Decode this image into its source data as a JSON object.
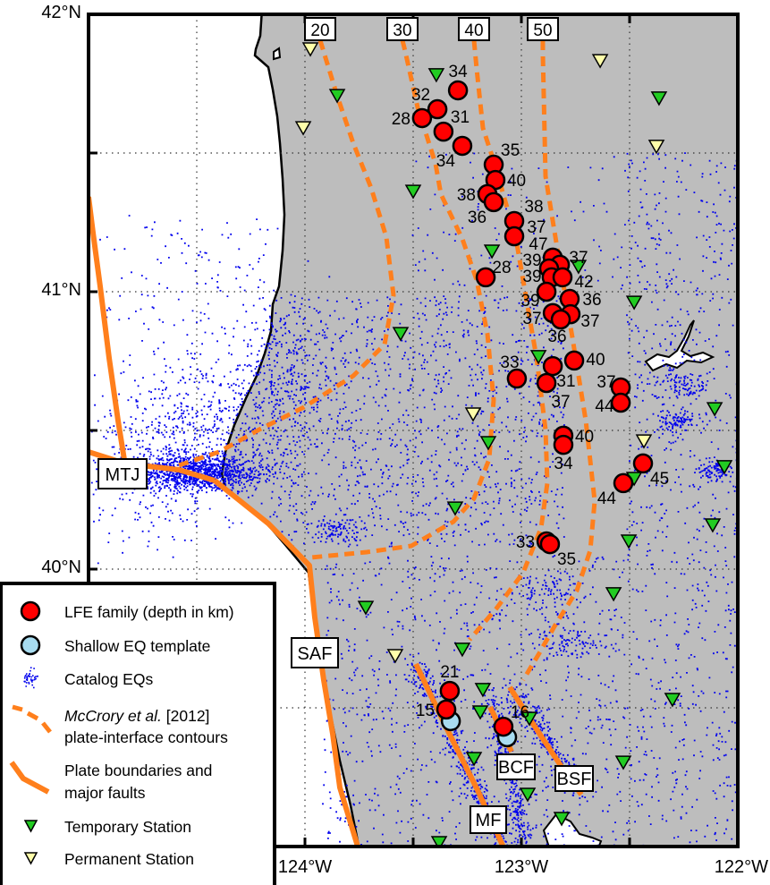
{
  "map": {
    "lat_labels": [
      "42°N",
      "41°N",
      "40°N"
    ],
    "lon_labels": [
      "124°W",
      "123°W",
      "122°W"
    ],
    "extent": {
      "lon": [
        -125,
        -122
      ],
      "lat": [
        39,
        42
      ]
    },
    "colors": {
      "land": "#bdbdbd",
      "ocean": "#ffffff",
      "lfe": "#ff0000",
      "shallow": "#a8dcf0",
      "catalog": "#0000ee",
      "contour": "#ff7f1c",
      "fault": "#ff7f1c",
      "temporary_station": "#22cc22",
      "permanent_station": "#ffffaa"
    },
    "contour_labels": [
      "20",
      "30",
      "40",
      "50"
    ],
    "feature_labels": {
      "mtj": "MTJ",
      "saf": "SAF",
      "mf": "MF",
      "bcf": "BCF",
      "bsf": "BSF"
    },
    "lfe_families": [
      {
        "depth": "34",
        "lon": -123.293,
        "lat": 41.726,
        "label": "n"
      },
      {
        "depth": "32",
        "lon": -123.388,
        "lat": 41.658,
        "label": "nw"
      },
      {
        "depth": "28",
        "lon": -123.459,
        "lat": 41.626,
        "label": "w"
      },
      {
        "depth": "31",
        "lon": -123.36,
        "lat": 41.577,
        "label": "ne"
      },
      {
        "depth": "34",
        "lon": -123.273,
        "lat": 41.526,
        "label": "sw"
      },
      {
        "depth": "35",
        "lon": -123.128,
        "lat": 41.458,
        "label": "ne"
      },
      {
        "depth": "40",
        "lon": -123.12,
        "lat": 41.403,
        "label": "e"
      },
      {
        "depth": "38",
        "lon": -123.157,
        "lat": 41.352,
        "label": "w"
      },
      {
        "depth": "36",
        "lon": -123.128,
        "lat": 41.323,
        "label": "sw"
      },
      {
        "depth": "38",
        "lon": -123.033,
        "lat": 41.255,
        "label": "ne"
      },
      {
        "depth": "37",
        "lon": -123.033,
        "lat": 41.2,
        "label": "e"
      },
      {
        "depth": "28",
        "lon": -123.165,
        "lat": 41.052,
        "label": "ne"
      },
      {
        "depth": "47",
        "lon": -122.855,
        "lat": 41.123,
        "label": "nw"
      },
      {
        "depth": "37",
        "lon": -122.822,
        "lat": 41.097,
        "label": "ne"
      },
      {
        "depth": "39",
        "lon": -122.872,
        "lat": 41.084,
        "label": "w"
      },
      {
        "depth": "39",
        "lon": -122.86,
        "lat": 41.052,
        "label": "w"
      },
      {
        "depth": "42",
        "lon": -122.81,
        "lat": 41.052,
        "label": "e"
      },
      {
        "depth": "39",
        "lon": -122.884,
        "lat": 41.0,
        "label": "sw"
      },
      {
        "depth": "36",
        "lon": -122.777,
        "lat": 40.974,
        "label": "e"
      },
      {
        "depth": "37",
        "lon": -122.855,
        "lat": 40.923,
        "label": "w"
      },
      {
        "depth": "37",
        "lon": -122.773,
        "lat": 40.919,
        "label": "e"
      },
      {
        "depth": "36",
        "lon": -122.818,
        "lat": 40.9,
        "label": "s"
      },
      {
        "depth": "33",
        "lon": -123.021,
        "lat": 40.687,
        "label": "nw"
      },
      {
        "depth": "31",
        "lon": -122.855,
        "lat": 40.732,
        "label": "se"
      },
      {
        "depth": "37",
        "lon": -122.884,
        "lat": 40.671,
        "label": "s"
      },
      {
        "depth": "40",
        "lon": -122.756,
        "lat": 40.752,
        "label": "e"
      },
      {
        "depth": "37",
        "lon": -122.541,
        "lat": 40.655,
        "label": "nw"
      },
      {
        "depth": "44",
        "lon": -122.541,
        "lat": 40.6,
        "label": "w"
      },
      {
        "depth": "40",
        "lon": -122.806,
        "lat": 40.481,
        "label": "e"
      },
      {
        "depth": "34",
        "lon": -122.806,
        "lat": 40.448,
        "label": "s"
      },
      {
        "depth": "45",
        "lon": -122.438,
        "lat": 40.381,
        "label": "se"
      },
      {
        "depth": "44",
        "lon": -122.529,
        "lat": 40.31,
        "label": "sw"
      },
      {
        "depth": "33",
        "lon": -122.884,
        "lat": 40.1,
        "label": "w"
      },
      {
        "depth": "35",
        "lon": -122.868,
        "lat": 40.09,
        "label": "se"
      },
      {
        "depth": "21",
        "lon": -123.331,
        "lat": 39.561,
        "label": "n"
      },
      {
        "depth": "15",
        "lon": -123.347,
        "lat": 39.494,
        "label": "w"
      },
      {
        "depth": "16",
        "lon": -123.083,
        "lat": 39.432,
        "label": "ne"
      }
    ],
    "shallow_templates": [
      {
        "lon": -123.326,
        "lat": 39.452
      },
      {
        "lon": -123.066,
        "lat": 39.394
      }
    ],
    "permanent_stations": [
      {
        "lon": -123.975,
        "lat": 41.874
      },
      {
        "lon": -124.008,
        "lat": 41.59
      },
      {
        "lon": -122.636,
        "lat": 41.832
      },
      {
        "lon": -122.376,
        "lat": 41.523
      },
      {
        "lon": -123.223,
        "lat": 40.558
      },
      {
        "lon": -122.434,
        "lat": 40.461
      },
      {
        "lon": -123.583,
        "lat": 39.687
      }
    ],
    "temporary_stations": [
      {
        "lon": -123.393,
        "lat": 41.781
      },
      {
        "lon": -123.851,
        "lat": 41.706
      },
      {
        "lon": -122.364,
        "lat": 41.697
      },
      {
        "lon": -123.5,
        "lat": 41.361
      },
      {
        "lon": -123.136,
        "lat": 41.145
      },
      {
        "lon": -122.736,
        "lat": 41.09
      },
      {
        "lon": -122.479,
        "lat": 40.961
      },
      {
        "lon": -123.558,
        "lat": 40.848
      },
      {
        "lon": -122.921,
        "lat": 40.765
      },
      {
        "lon": -122.107,
        "lat": 40.577
      },
      {
        "lon": -123.153,
        "lat": 40.455
      },
      {
        "lon": -122.062,
        "lat": 40.368
      },
      {
        "lon": -122.479,
        "lat": 40.326
      },
      {
        "lon": -123.306,
        "lat": 40.219
      },
      {
        "lon": -122.116,
        "lat": 40.158
      },
      {
        "lon": -122.504,
        "lat": 40.1
      },
      {
        "lon": -122.574,
        "lat": 39.91
      },
      {
        "lon": -123.719,
        "lat": 39.861
      },
      {
        "lon": -123.273,
        "lat": 39.71
      },
      {
        "lon": -123.178,
        "lat": 39.565
      },
      {
        "lon": -123.19,
        "lat": 39.484
      },
      {
        "lon": -122.963,
        "lat": 39.461
      },
      {
        "lon": -122.302,
        "lat": 39.529
      },
      {
        "lon": -123.219,
        "lat": 39.316
      },
      {
        "lon": -122.529,
        "lat": 39.303
      },
      {
        "lon": -122.971,
        "lat": 39.187
      },
      {
        "lon": -122.814,
        "lat": 39.1
      },
      {
        "lon": -123.38,
        "lat": 39.013
      }
    ]
  },
  "legend": {
    "lfe": "LFE family (depth in km)",
    "shallow": "Shallow EQ template",
    "catalog": "Catalog EQs",
    "contours_italic": "McCrory et al.",
    "contours_ref": " [2012]",
    "contours_line2": "plate-interface contours",
    "plate_line1": "Plate boundaries and",
    "plate_line2": "major faults",
    "temporary": "Temporary Station",
    "permanent": "Permanent Station"
  }
}
